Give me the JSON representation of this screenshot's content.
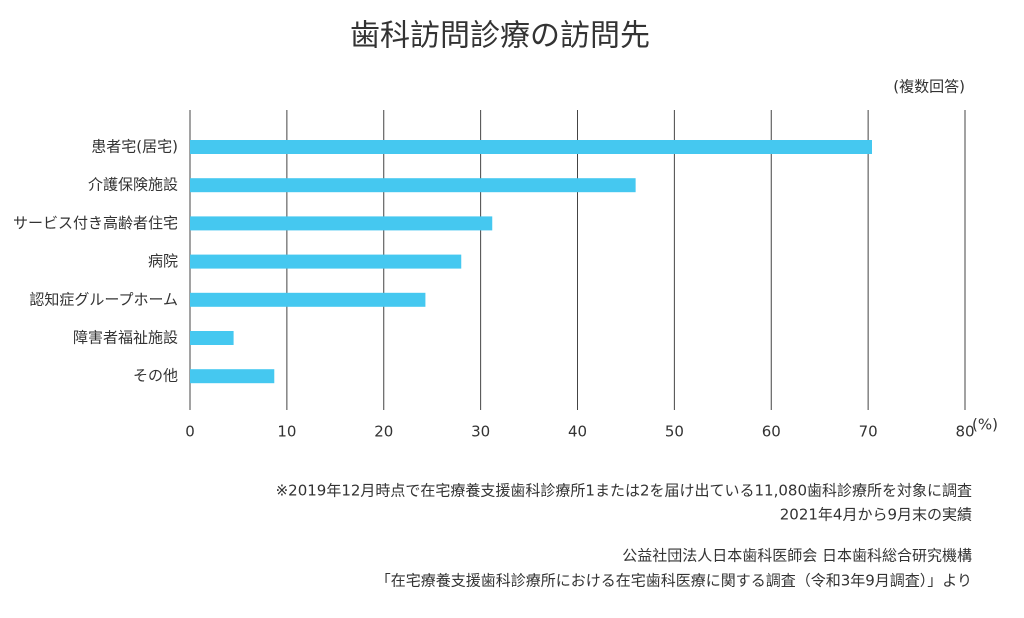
{
  "chart_data": {
    "type": "bar",
    "orientation": "horizontal",
    "title": "歯科訪問診療の訪問先",
    "subtitle": "(複数回答)",
    "xlabel": "(%)",
    "categories": [
      "患者宅(居宅)",
      "介護保険施設",
      "サービス付き高齢者住宅",
      "病院",
      "認知症グループホーム",
      "障害者福祉施設",
      "その他"
    ],
    "values": [
      70.4,
      46.0,
      31.2,
      28.0,
      24.3,
      4.5,
      8.7
    ],
    "color": "#45c8f0",
    "xlim": [
      0,
      80
    ],
    "xticks": [
      0,
      10,
      20,
      30,
      40,
      50,
      60,
      70,
      80
    ],
    "grid": true,
    "notes": [
      "※2019年12月時点で在宅療養支援歯科診療所1または2を届け出ている11,080歯科診療所を対象に調査",
      "2021年4月から9月末の実績",
      "公益社団法人日本歯科医師会 日本歯科総合研究機構",
      "「在宅療養支援歯科診療所における在宅歯科医療に関する調査（令和3年9月調査）」より"
    ]
  }
}
